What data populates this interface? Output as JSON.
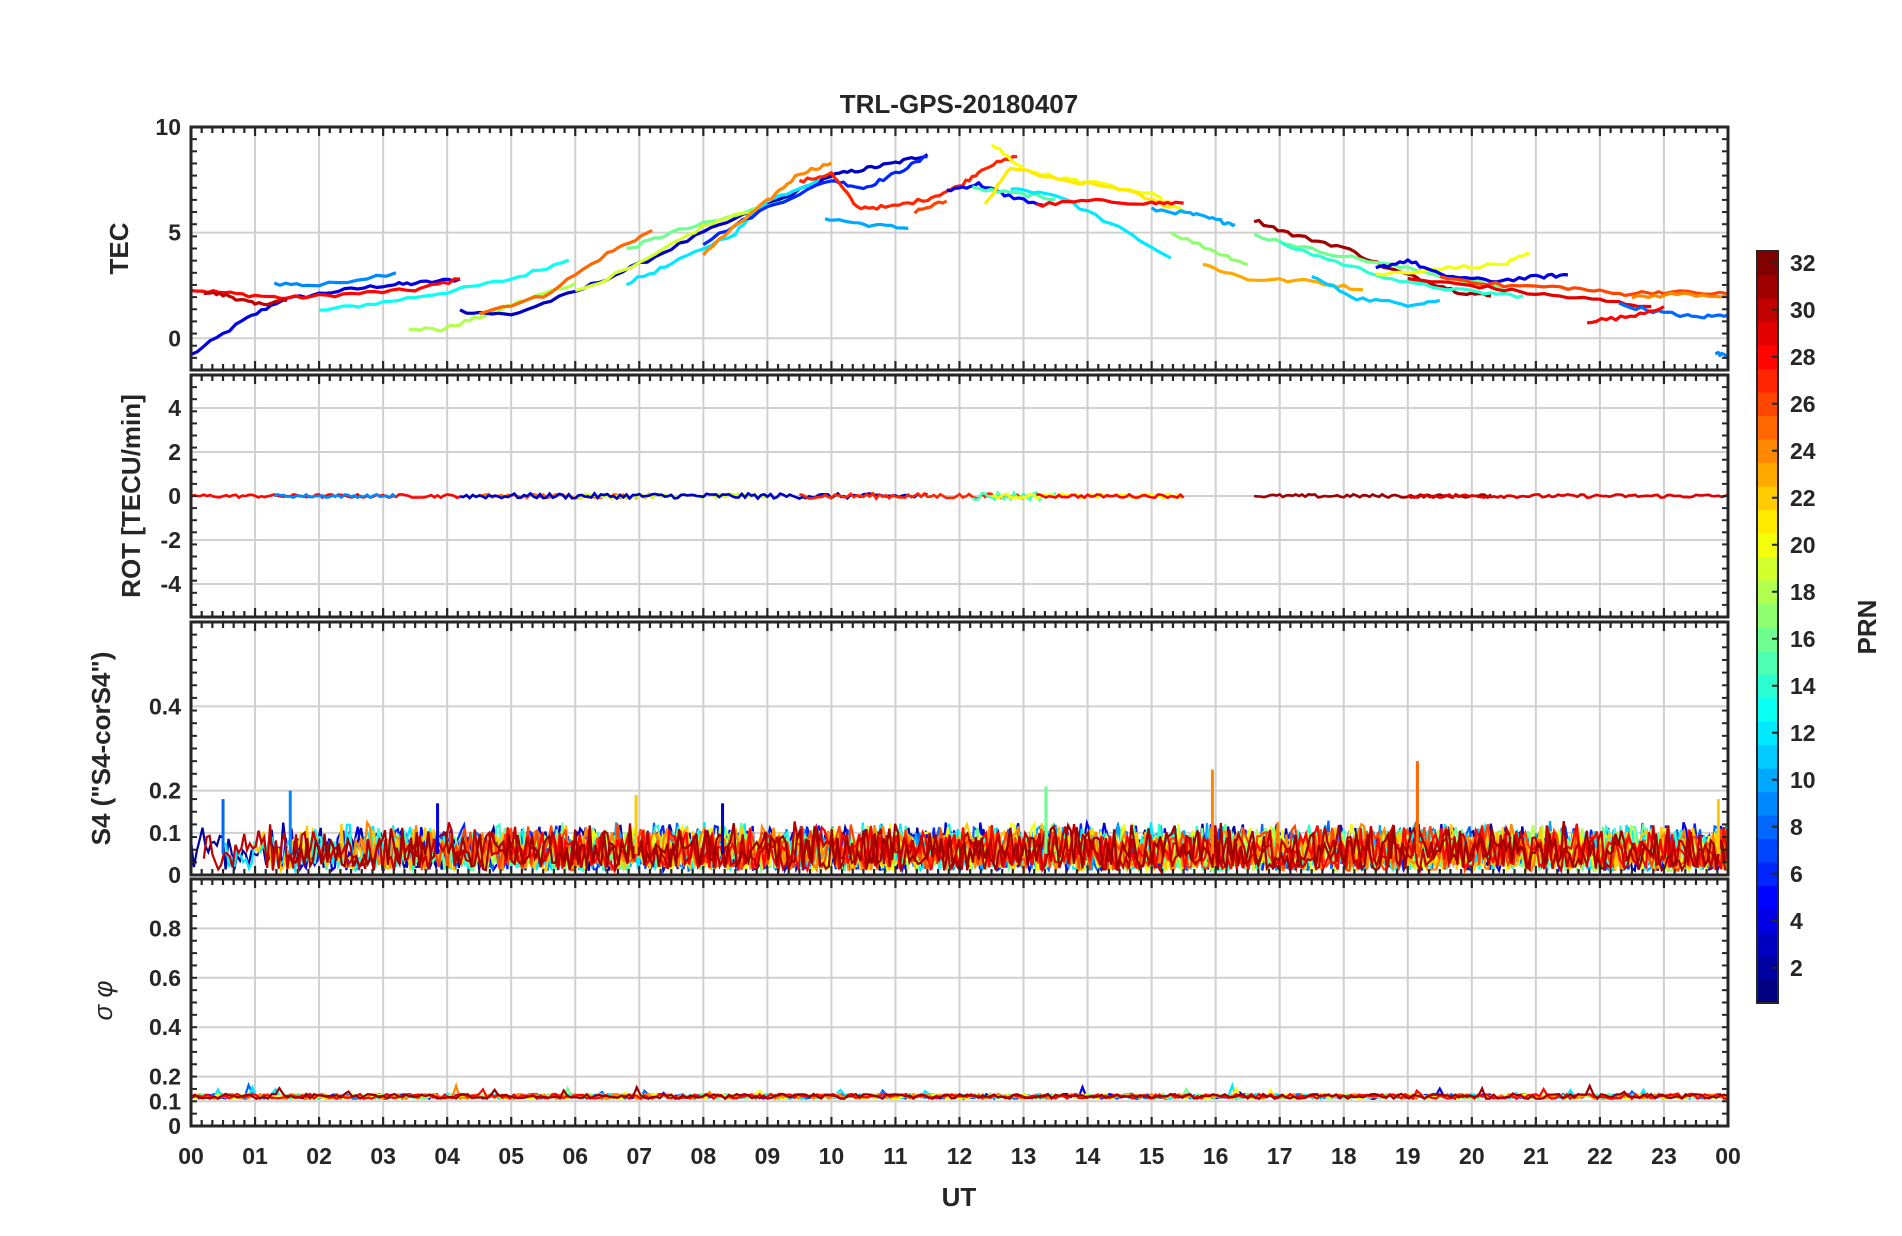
{
  "figure": {
    "title": "TRL-GPS-20180407",
    "xlabel": "UT",
    "x_ticks": [
      "00",
      "01",
      "02",
      "03",
      "04",
      "05",
      "06",
      "07",
      "08",
      "09",
      "10",
      "11",
      "12",
      "13",
      "14",
      "15",
      "16",
      "17",
      "18",
      "19",
      "20",
      "21",
      "22",
      "23",
      "00"
    ]
  },
  "colorbar": {
    "label": "PRN",
    "range": [
      1,
      32
    ],
    "ticks": [
      2,
      4,
      6,
      8,
      10,
      12,
      14,
      16,
      18,
      20,
      22,
      24,
      26,
      28,
      30,
      32
    ],
    "colormap": "jet"
  },
  "chart_data": [
    {
      "type": "line",
      "panel": "TEC",
      "ylabel": "TEC",
      "ylim": [
        -1.5,
        10
      ],
      "yticks": [
        0,
        5,
        10
      ],
      "xlim": [
        0,
        24
      ],
      "grid": true,
      "series": [
        {
          "prn": 4,
          "x": [
            0.0,
            0.8,
            1.4,
            2.2,
            3.0,
            3.5,
            4.2
          ],
          "y": [
            -0.8,
            0.8,
            1.8,
            2.2,
            2.5,
            2.6,
            2.8
          ]
        },
        {
          "prn": 9,
          "x": [
            1.3,
            2.0,
            3.2
          ],
          "y": [
            2.6,
            2.5,
            3.1
          ]
        },
        {
          "prn": 28,
          "x": [
            0.0,
            0.7,
            1.5,
            2.5,
            3.5,
            4.2
          ],
          "y": [
            2.3,
            2.1,
            1.9,
            2.1,
            2.3,
            2.8
          ]
        },
        {
          "prn": 30,
          "x": [
            0.2,
            0.6,
            1.0,
            1.5
          ],
          "y": [
            2.2,
            2.0,
            1.6,
            1.8
          ]
        },
        {
          "prn": 13,
          "x": [
            2.0,
            3.0,
            4.0,
            5.0,
            5.9
          ],
          "y": [
            1.3,
            1.7,
            2.2,
            2.8,
            3.7
          ]
        },
        {
          "prn": 18,
          "x": [
            3.4,
            3.9,
            4.5,
            5.2,
            6.0
          ],
          "y": [
            0.5,
            0.4,
            1.0,
            1.8,
            2.6
          ]
        },
        {
          "prn": 3,
          "x": [
            4.2,
            5.0,
            6.0,
            7.0,
            8.0,
            9.0,
            10.0,
            10.5,
            11.0,
            11.5
          ],
          "y": [
            1.3,
            1.1,
            2.2,
            3.5,
            5.0,
            6.3,
            7.7,
            8.0,
            8.3,
            8.7
          ]
        },
        {
          "prn": 25,
          "x": [
            4.5,
            5.5,
            6.5,
            7.2
          ],
          "y": [
            1.2,
            2.0,
            4.0,
            5.1
          ]
        },
        {
          "prn": 16,
          "x": [
            6.8,
            7.5,
            8.5,
            9.5
          ],
          "y": [
            4.2,
            5.0,
            5.8,
            6.8
          ]
        },
        {
          "prn": 19,
          "x": [
            6.0,
            7.0,
            8.0,
            9.0
          ],
          "y": [
            2.2,
            3.5,
            5.3,
            6.3
          ]
        },
        {
          "prn": 12,
          "x": [
            6.8,
            7.5,
            8.5,
            9.0,
            9.8
          ],
          "y": [
            2.6,
            3.5,
            5.0,
            6.5,
            7.5
          ]
        },
        {
          "prn": 6,
          "x": [
            8.0,
            9.0,
            10.0,
            10.5,
            11.0,
            11.5
          ],
          "y": [
            4.5,
            6.2,
            7.5,
            7.1,
            7.8,
            8.6
          ]
        },
        {
          "prn": 10,
          "x": [
            9.9,
            10.5,
            11.2
          ],
          "y": [
            5.7,
            5.4,
            5.2
          ]
        },
        {
          "prn": 24,
          "x": [
            8.0,
            8.5,
            9.0,
            9.5,
            10.0
          ],
          "y": [
            4.0,
            5.3,
            6.5,
            7.8,
            8.3
          ]
        },
        {
          "prn": 27,
          "x": [
            9.5,
            10.0,
            10.4,
            10.9,
            11.5,
            12.0,
            12.4,
            12.9
          ],
          "y": [
            7.4,
            7.8,
            6.2,
            6.2,
            6.6,
            7.2,
            8.1,
            8.6
          ]
        },
        {
          "prn": 26,
          "x": [
            11.3,
            11.8
          ],
          "y": [
            6.0,
            6.5
          ]
        },
        {
          "prn": 5,
          "x": [
            11.8,
            12.3,
            12.7,
            13.3
          ],
          "y": [
            7.0,
            7.3,
            6.8,
            6.3
          ]
        },
        {
          "prn": 15,
          "x": [
            12.2,
            13.0,
            13.5
          ],
          "y": [
            7.1,
            6.8,
            6.6
          ]
        },
        {
          "prn": 20,
          "x": [
            12.5,
            13.0,
            13.5,
            14.0,
            15.0,
            15.5
          ],
          "y": [
            9.2,
            8.0,
            7.6,
            7.4,
            6.8,
            6.0
          ]
        },
        {
          "prn": 21,
          "x": [
            12.4,
            12.8,
            13.5,
            14.5,
            15.3
          ],
          "y": [
            6.3,
            8.1,
            7.5,
            7.1,
            6.2
          ]
        },
        {
          "prn": 12,
          "x": [
            12.8,
            13.5,
            14.5,
            15.3
          ],
          "y": [
            7.1,
            6.8,
            5.2,
            3.8
          ]
        },
        {
          "prn": 28,
          "x": [
            13.2,
            14.0,
            15.0,
            15.5
          ],
          "y": [
            6.3,
            6.5,
            6.4,
            6.4
          ]
        },
        {
          "prn": 10,
          "x": [
            15.0,
            15.6,
            16.0,
            16.3
          ],
          "y": [
            6.1,
            5.9,
            5.6,
            5.4
          ]
        },
        {
          "prn": 17,
          "x": [
            15.3,
            16.0,
            16.5
          ],
          "y": [
            5.0,
            4.1,
            3.5
          ]
        },
        {
          "prn": 23,
          "x": [
            15.8,
            16.5,
            17.5,
            18.3
          ],
          "y": [
            3.5,
            2.8,
            2.7,
            2.3
          ]
        },
        {
          "prn": 31,
          "x": [
            16.6,
            17.2,
            18.0,
            18.7,
            19.3,
            19.8,
            20.3
          ],
          "y": [
            5.6,
            4.9,
            4.3,
            3.3,
            2.7,
            2.2,
            2.0
          ]
        },
        {
          "prn": 16,
          "x": [
            16.6,
            17.5,
            18.5,
            19.5,
            20.5
          ],
          "y": [
            4.9,
            4.2,
            3.6,
            3.0,
            2.4
          ]
        },
        {
          "prn": 14,
          "x": [
            17.0,
            18.0,
            19.0,
            20.0,
            20.8
          ],
          "y": [
            4.5,
            3.5,
            2.6,
            2.2,
            2.0
          ]
        },
        {
          "prn": 11,
          "x": [
            17.5,
            18.2,
            19.0,
            19.5
          ],
          "y": [
            2.9,
            1.9,
            1.6,
            1.8
          ]
        },
        {
          "prn": 20,
          "x": [
            18.5,
            19.5,
            20.5,
            20.9
          ],
          "y": [
            3.0,
            3.3,
            3.5,
            4.0
          ]
        },
        {
          "prn": 4,
          "x": [
            18.5,
            19.0,
            19.5,
            20.3,
            21.0,
            21.5
          ],
          "y": [
            3.3,
            3.7,
            3.0,
            2.7,
            2.9,
            3.0
          ]
        },
        {
          "prn": 26,
          "x": [
            19.5,
            20.5,
            21.5,
            22.3,
            23.0,
            24.0
          ],
          "y": [
            2.9,
            2.5,
            2.4,
            2.1,
            2.2,
            2.1
          ]
        },
        {
          "prn": 29,
          "x": [
            19.0,
            20.0,
            21.0,
            22.0,
            22.8
          ],
          "y": [
            2.8,
            2.5,
            2.1,
            1.8,
            1.5
          ]
        },
        {
          "prn": 8,
          "x": [
            22.3,
            23.0,
            23.5,
            24.0
          ],
          "y": [
            1.6,
            1.2,
            1.0,
            1.1
          ]
        },
        {
          "prn": 28,
          "x": [
            21.8,
            22.4,
            23.0
          ],
          "y": [
            0.8,
            1.0,
            1.5
          ]
        },
        {
          "prn": 24,
          "x": [
            22.5,
            23.2,
            24.0
          ],
          "y": [
            1.9,
            2.1,
            2.0
          ]
        },
        {
          "prn": 9,
          "x": [
            23.8,
            24.0
          ],
          "y": [
            -0.7,
            -0.9
          ]
        }
      ]
    },
    {
      "type": "line",
      "panel": "ROT",
      "ylabel": "ROT [TECU/min]",
      "ylim": [
        -5.5,
        5.5
      ],
      "yticks": [
        -4,
        -2,
        0,
        2,
        4
      ],
      "xlim": [
        0,
        24
      ],
      "grid": true,
      "series_note_values": "near zero, amplitude about 0.1-0.3",
      "segments": [
        {
          "prn": 28,
          "x": [
            0,
            4.2
          ],
          "amp": 0.08
        },
        {
          "prn": 9,
          "x": [
            1.3,
            3.2
          ],
          "amp": 0.08
        },
        {
          "prn": 25,
          "x": [
            4.5,
            7.2
          ],
          "amp": 0.1
        },
        {
          "prn": 19,
          "x": [
            6,
            9
          ],
          "amp": 0.1
        },
        {
          "prn": 3,
          "x": [
            4.2,
            11.5
          ],
          "amp": 0.12
        },
        {
          "prn": 27,
          "x": [
            9.5,
            13
          ],
          "amp": 0.12
        },
        {
          "prn": 15,
          "x": [
            12.2,
            13.5
          ],
          "amp": 0.2
        },
        {
          "prn": 20,
          "x": [
            12.5,
            15.5
          ],
          "amp": 0.1
        },
        {
          "prn": 28,
          "x": [
            13.2,
            15.5
          ],
          "amp": 0.08
        },
        {
          "prn": 31,
          "x": [
            16.6,
            20.3
          ],
          "amp": 0.08
        },
        {
          "prn": 29,
          "x": [
            19,
            24
          ],
          "amp": 0.08
        }
      ]
    },
    {
      "type": "line",
      "panel": "S4",
      "ylabel": "S4 (\"S4-corS4\")",
      "ylim": [
        0,
        0.6
      ],
      "yticks": [
        0,
        0.1,
        0.2,
        0.4
      ],
      "xlim": [
        0,
        24
      ],
      "grid": true,
      "typical_range": [
        0.0,
        0.12
      ],
      "spikes": [
        {
          "x": 1.55,
          "y": 0.2,
          "prn": 9
        },
        {
          "x": 6.95,
          "y": 0.19,
          "prn": 22
        },
        {
          "x": 13.35,
          "y": 0.21,
          "prn": 16
        },
        {
          "x": 15.95,
          "y": 0.25,
          "prn": 24
        },
        {
          "x": 19.15,
          "y": 0.27,
          "prn": 25
        },
        {
          "x": 23.85,
          "y": 0.18,
          "prn": 22
        },
        {
          "x": 0.5,
          "y": 0.18,
          "prn": 8
        },
        {
          "x": 3.85,
          "y": 0.17,
          "prn": 4
        },
        {
          "x": 8.3,
          "y": 0.17,
          "prn": 3
        }
      ]
    },
    {
      "type": "line",
      "panel": "sigma_phi",
      "ylabel": "σ φ",
      "ylim": [
        0,
        1
      ],
      "yticks": [
        0,
        0.1,
        0.2,
        0.4,
        0.6,
        0.8
      ],
      "xlim": [
        0,
        24
      ],
      "grid": true,
      "baseline": 0.12,
      "typical_range": [
        0.1,
        0.16
      ]
    }
  ]
}
